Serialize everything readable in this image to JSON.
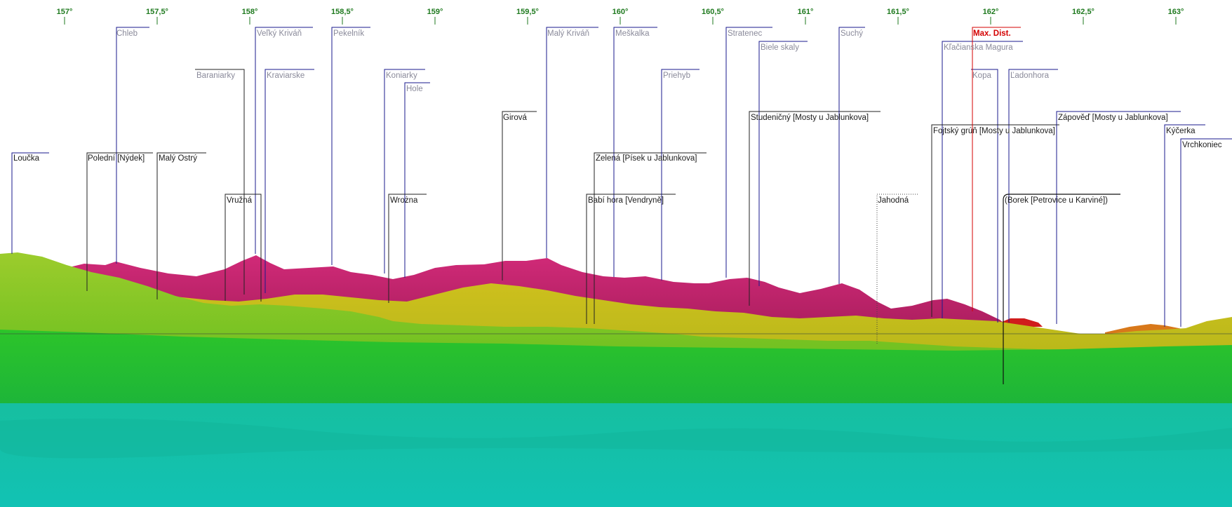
{
  "scale": {
    "ticks": [
      "157°",
      "157,5°",
      "158°",
      "158,5°",
      "159°",
      "159,5°",
      "160°",
      "160,5°",
      "161°",
      "161,5°",
      "162°",
      "162,5°",
      "163°"
    ]
  },
  "colors": {
    "tick": "#1f7a1f",
    "far_label": "#8a8a9a",
    "near_label": "#1a1a1a",
    "leader": "#1a1a8c",
    "max_dist": "#d40000",
    "terrain_magenta": "#c8266e",
    "terrain_yellow": "#c9c21a",
    "terrain_lightgreen": "#8ccc24",
    "terrain_green": "#1fbf2a",
    "terrain_teal": "#13bfa8"
  },
  "peaks": {
    "loucka": "Loučka",
    "chleb": "Chleb",
    "polední": "Polední [Nýdek]",
    "maly_ostry": "Malý Ostrý",
    "baraniarky": "Baraniarky",
    "velky_krivan": "Veľký Kriváň",
    "vruzna": "Vružná",
    "kraviarske": "Kraviarske",
    "pekelnik": "Pekelník",
    "koniarky": "Koniarky",
    "hole": "Hole",
    "wrozna": "Wrożna",
    "girova": "Girová",
    "maly_krivan": "Malý Kriváň",
    "meskalka": "Meškalka",
    "zelena": "Zelená [Písek u Jablunkova]",
    "babi_hora": "Babí hora [Vendryně]",
    "priehyb": "Priehyb",
    "stratenec": "Stratenec",
    "biele_skaly": "Biele skaly",
    "studenicny": "Studeničný [Mosty u Jablunkova]",
    "suchy": "Suchý",
    "jahodna": "Jahodná",
    "max_dist": "Max. Dist.",
    "klacianska": "Kľačianska Magura",
    "kopa": "Kopa",
    "ladonhora": "Ľadonhora",
    "fojtsky": "Fojtský grúň [Mosty u Jablunkova]",
    "borek": "(Borek [Petrovice u Karviné])",
    "zapoved": "Zápověď [Mosty u Jablunkova]",
    "kycerka": "Kýčerka",
    "vrchkoniec": "Vrchkoniec"
  }
}
